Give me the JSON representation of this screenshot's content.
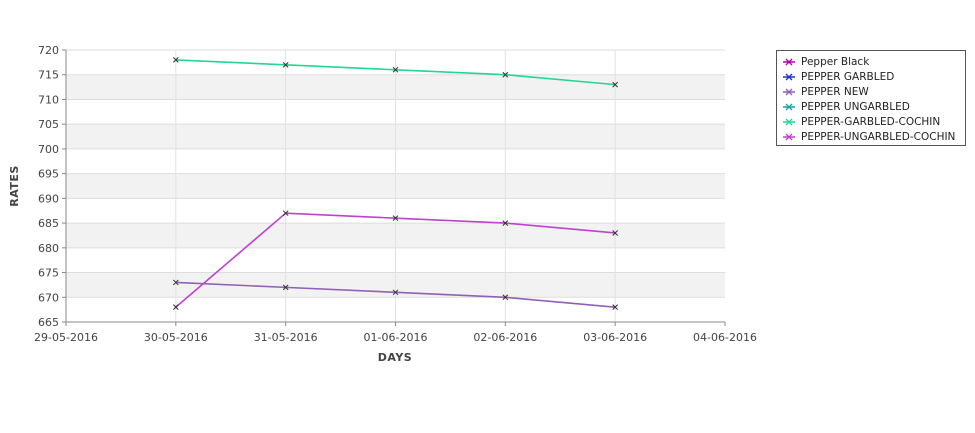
{
  "chart_data": {
    "type": "line",
    "xlabel": "DAYS",
    "ylabel": "RATES",
    "x": [
      "29-05-2016",
      "30-05-2016",
      "31-05-2016",
      "01-06-2016",
      "02-06-2016",
      "03-06-2016",
      "04-06-2016"
    ],
    "ylim": [
      665,
      720
    ],
    "yticks": [
      "665",
      "670",
      "675",
      "680",
      "685",
      "690",
      "695",
      "700",
      "705",
      "710",
      "715",
      "720"
    ],
    "grid": true,
    "legend_position": "right",
    "series": [
      {
        "name": "Pepper Black",
        "color": "#b000b0",
        "values": [
          null,
          null,
          null,
          null,
          null,
          null,
          null
        ]
      },
      {
        "name": "PEPPER GARBLED",
        "color": "#2030c8",
        "values": [
          null,
          null,
          null,
          null,
          null,
          null,
          null
        ]
      },
      {
        "name": "PEPPER NEW",
        "color": "#9060b8",
        "values": [
          null,
          673,
          672,
          671,
          670,
          668,
          null
        ]
      },
      {
        "name": "PEPPER UNGARBLED",
        "color": "#20a0a0",
        "values": [
          null,
          null,
          null,
          null,
          null,
          null,
          null
        ]
      },
      {
        "name": "PEPPER-GARBLED-COCHIN",
        "color": "#20d890",
        "values": [
          null,
          718,
          717,
          716,
          715,
          713,
          null
        ]
      },
      {
        "name": "PEPPER-UNGARBLED-COCHIN",
        "color": "#c040d0",
        "values": [
          null,
          668,
          687,
          686,
          685,
          683,
          null
        ]
      }
    ]
  }
}
